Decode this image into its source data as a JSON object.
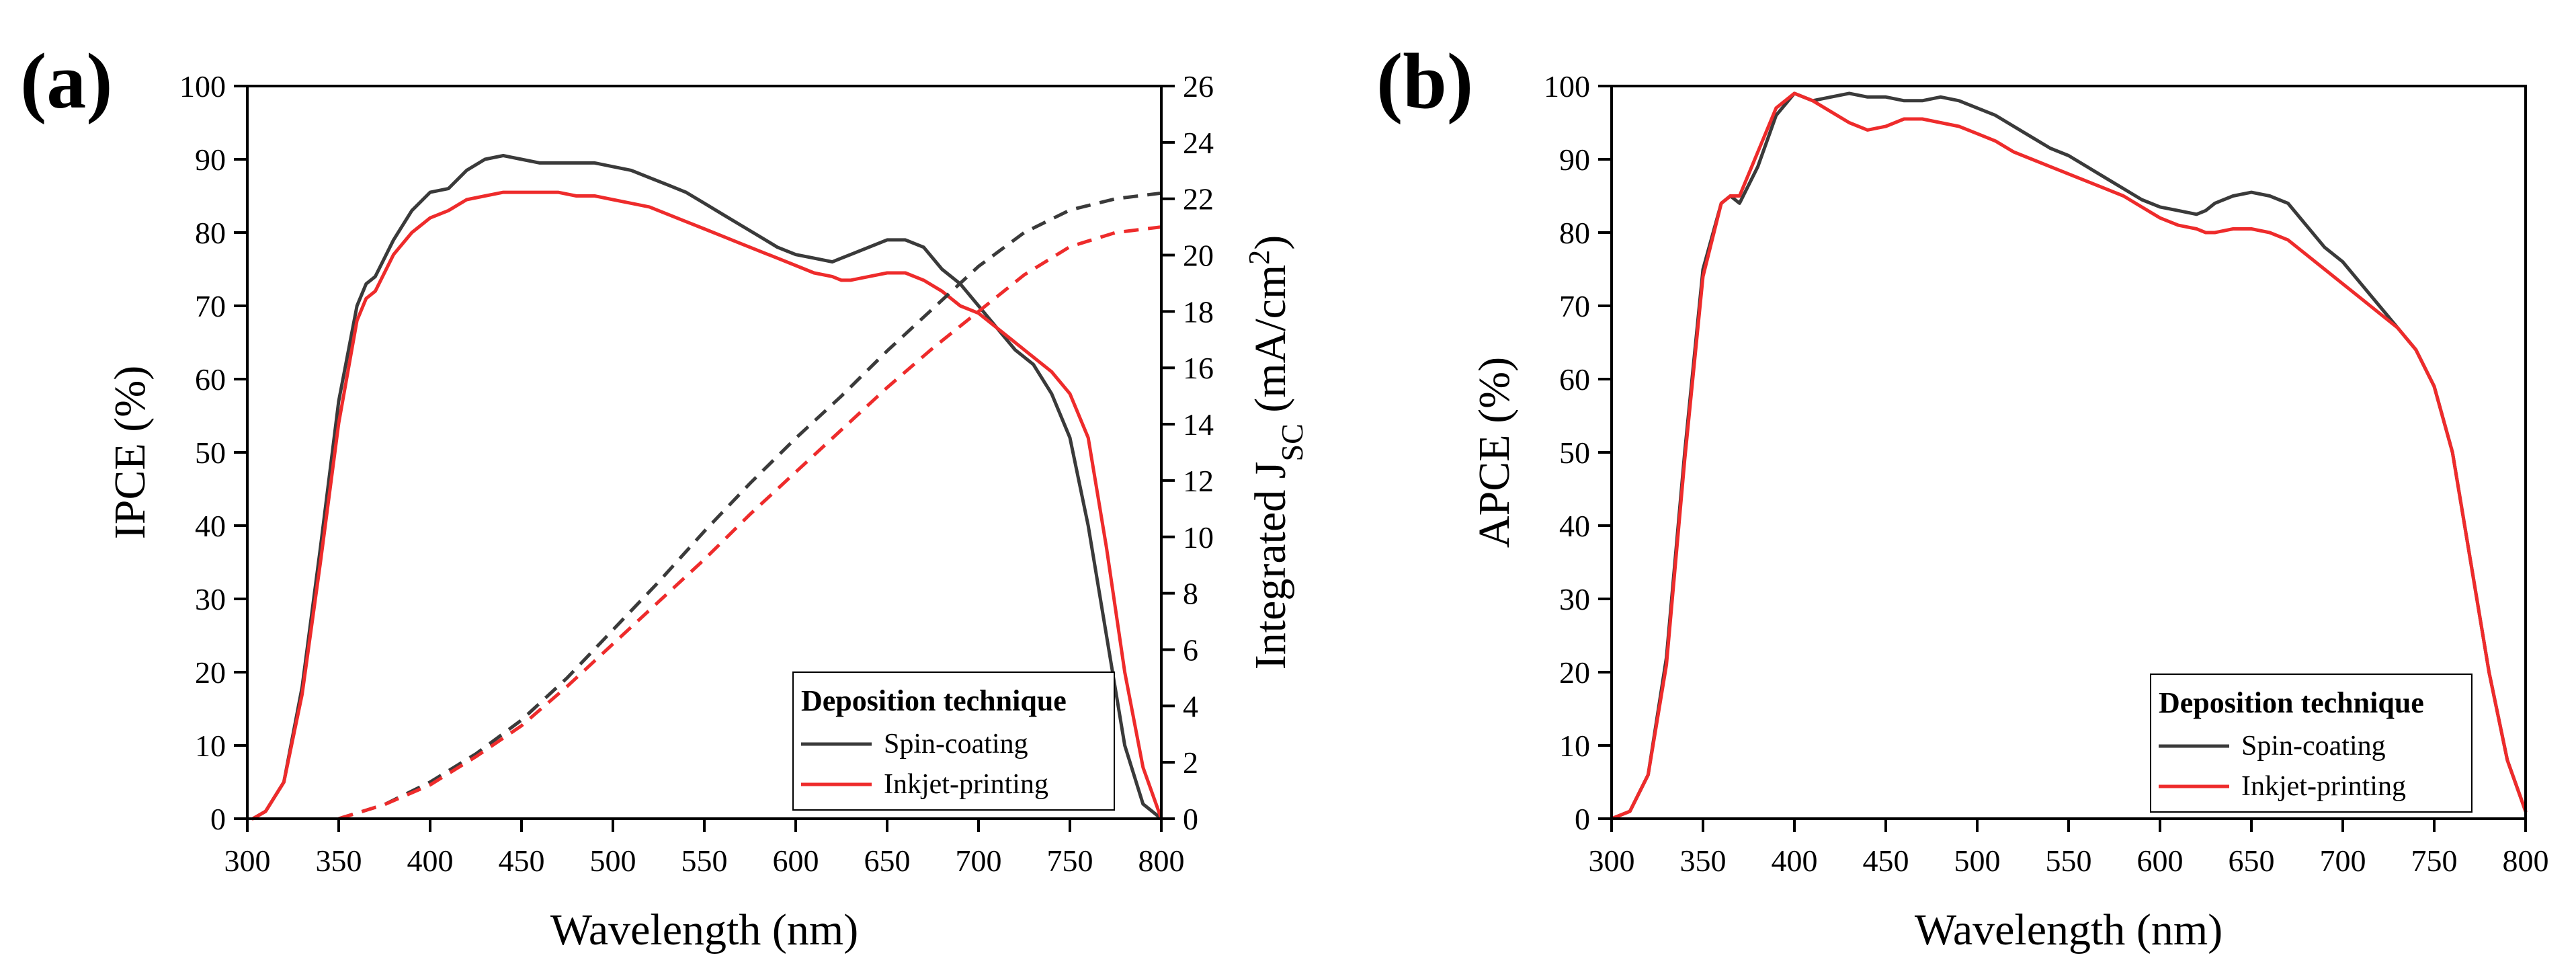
{
  "colors": {
    "spin": "#3a3a3a",
    "inkjet": "#ee2b2b",
    "axis": "#000000"
  },
  "chart_data": [
    {
      "type": "line",
      "panel_label": "(a)",
      "xlabel": "Wavelength (nm)",
      "ylabel": "IPCE (%)",
      "y2label_main": "Integrated J",
      "y2label_sub": "SC",
      "y2label_unit_open": " (mA/cm",
      "y2label_sup": "2",
      "y2label_unit_close": ")",
      "xlim": [
        300,
        800
      ],
      "ylim": [
        0,
        100
      ],
      "y2lim": [
        0,
        26
      ],
      "xticks": [
        300,
        350,
        400,
        450,
        500,
        550,
        600,
        650,
        700,
        750,
        800
      ],
      "yticks": [
        0,
        10,
        20,
        30,
        40,
        50,
        60,
        70,
        80,
        90,
        100
      ],
      "y2ticks": [
        0,
        2,
        4,
        6,
        8,
        10,
        12,
        14,
        16,
        18,
        20,
        22,
        24,
        26
      ],
      "legend": {
        "title": "Deposition technique",
        "items": [
          "Spin-coating",
          "Inkjet-printing"
        ],
        "position": "bottom-right"
      },
      "series": [
        {
          "name": "Spin-coating",
          "axis": "left",
          "style": "solid",
          "x": [
            303,
            310,
            320,
            330,
            340,
            350,
            360,
            365,
            370,
            380,
            390,
            400,
            410,
            420,
            430,
            440,
            450,
            460,
            470,
            480,
            490,
            500,
            510,
            520,
            530,
            540,
            550,
            560,
            570,
            580,
            590,
            600,
            610,
            620,
            625,
            630,
            640,
            650,
            660,
            670,
            680,
            690,
            700,
            710,
            720,
            730,
            740,
            750,
            760,
            770,
            780,
            790,
            800
          ],
          "y": [
            0,
            1,
            5,
            18,
            37,
            57,
            70,
            73,
            74,
            79,
            83,
            85.5,
            86,
            88.5,
            90,
            90.5,
            90,
            89.5,
            89.5,
            89.5,
            89.5,
            89,
            88.5,
            87.5,
            86.5,
            85.5,
            84,
            82.5,
            81,
            79.5,
            78,
            77,
            76.5,
            76,
            76.5,
            77,
            78,
            79,
            79,
            78,
            75,
            73,
            70,
            67,
            64,
            62,
            58,
            52,
            40,
            25,
            10,
            2,
            0
          ]
        },
        {
          "name": "Inkjet-printing",
          "axis": "left",
          "style": "solid",
          "x": [
            303,
            310,
            320,
            330,
            340,
            350,
            360,
            365,
            370,
            380,
            390,
            400,
            410,
            420,
            430,
            440,
            450,
            460,
            470,
            480,
            490,
            500,
            510,
            520,
            530,
            540,
            550,
            560,
            570,
            580,
            590,
            600,
            610,
            620,
            625,
            630,
            640,
            650,
            660,
            670,
            680,
            690,
            700,
            710,
            720,
            730,
            740,
            750,
            760,
            770,
            780,
            790,
            800
          ],
          "y": [
            0,
            1,
            5,
            17,
            35,
            54,
            68,
            71,
            72,
            77,
            80,
            82,
            83,
            84.5,
            85,
            85.5,
            85.5,
            85.5,
            85.5,
            85,
            85,
            84.5,
            84,
            83.5,
            82.5,
            81.5,
            80.5,
            79.5,
            78.5,
            77.5,
            76.5,
            75.5,
            74.5,
            74,
            73.5,
            73.5,
            74,
            74.5,
            74.5,
            73.5,
            72,
            70,
            69,
            67,
            65,
            63,
            61,
            58,
            52,
            37,
            20,
            7,
            0
          ]
        },
        {
          "name": "Spin-coating (integrated JSC)",
          "axis": "right",
          "style": "dashed",
          "x": [
            350,
            375,
            400,
            425,
            450,
            475,
            500,
            525,
            550,
            575,
            600,
            625,
            650,
            675,
            700,
            725,
            750,
            775,
            800
          ],
          "y": [
            0,
            0.5,
            1.3,
            2.3,
            3.5,
            5,
            6.7,
            8.4,
            10.2,
            11.9,
            13.5,
            15,
            16.6,
            18.1,
            19.6,
            20.8,
            21.6,
            22,
            22.2
          ]
        },
        {
          "name": "Inkjet-printing (integrated JSC)",
          "axis": "right",
          "style": "dashed",
          "x": [
            350,
            375,
            400,
            425,
            450,
            475,
            500,
            525,
            550,
            575,
            600,
            625,
            650,
            675,
            700,
            725,
            750,
            775,
            800
          ],
          "y": [
            0,
            0.5,
            1.2,
            2.2,
            3.3,
            4.7,
            6.2,
            7.7,
            9.2,
            10.8,
            12.3,
            13.8,
            15.3,
            16.7,
            18,
            19.3,
            20.3,
            20.8,
            21
          ]
        }
      ]
    },
    {
      "type": "line",
      "panel_label": "(b)",
      "xlabel": "Wavelength (nm)",
      "ylabel": "APCE (%)",
      "xlim": [
        300,
        800
      ],
      "ylim": [
        0,
        100
      ],
      "xticks": [
        300,
        350,
        400,
        450,
        500,
        550,
        600,
        650,
        700,
        750,
        800
      ],
      "yticks": [
        0,
        10,
        20,
        30,
        40,
        50,
        60,
        70,
        80,
        90,
        100
      ],
      "legend": {
        "title": "Deposition technique",
        "items": [
          "Spin-coating",
          "Inkjet-printing"
        ],
        "position": "bottom-right"
      },
      "series": [
        {
          "name": "Spin-coating",
          "axis": "left",
          "style": "solid",
          "x": [
            300,
            310,
            320,
            330,
            340,
            350,
            360,
            365,
            370,
            380,
            390,
            400,
            410,
            420,
            430,
            440,
            450,
            460,
            470,
            480,
            490,
            500,
            510,
            520,
            530,
            540,
            550,
            560,
            570,
            580,
            590,
            600,
            610,
            620,
            625,
            630,
            640,
            650,
            660,
            670,
            680,
            690,
            700,
            710,
            720,
            730,
            740,
            750,
            760,
            770,
            780,
            790,
            800
          ],
          "y": [
            0,
            1,
            6,
            22,
            50,
            75,
            84,
            85,
            84,
            89,
            96,
            99,
            98,
            98.5,
            99,
            98.5,
            98.5,
            98,
            98,
            98.5,
            98,
            97,
            96,
            94.5,
            93,
            91.5,
            90.5,
            89,
            87.5,
            86,
            84.5,
            83.5,
            83,
            82.5,
            83,
            84,
            85,
            85.5,
            85,
            84,
            81,
            78,
            76,
            73,
            70,
            67,
            64,
            59,
            50,
            35,
            20,
            8,
            1
          ]
        },
        {
          "name": "Inkjet-printing",
          "axis": "left",
          "style": "solid",
          "x": [
            300,
            310,
            320,
            330,
            340,
            350,
            360,
            365,
            370,
            380,
            390,
            400,
            410,
            420,
            430,
            440,
            450,
            460,
            470,
            480,
            490,
            500,
            510,
            520,
            530,
            540,
            550,
            560,
            570,
            580,
            590,
            600,
            610,
            620,
            625,
            630,
            640,
            650,
            660,
            670,
            680,
            690,
            700,
            710,
            720,
            730,
            740,
            750,
            760,
            770,
            780,
            790,
            800
          ],
          "y": [
            0,
            1,
            6,
            21,
            49,
            74,
            84,
            85,
            85,
            91,
            97,
            99,
            98,
            96.5,
            95,
            94,
            94.5,
            95.5,
            95.5,
            95,
            94.5,
            93.5,
            92.5,
            91,
            90,
            89,
            88,
            87,
            86,
            85,
            83.5,
            82,
            81,
            80.5,
            80,
            80,
            80.5,
            80.5,
            80,
            79,
            77,
            75,
            73,
            71,
            69,
            67,
            64,
            59,
            50,
            35,
            20,
            8,
            1
          ]
        }
      ]
    }
  ]
}
